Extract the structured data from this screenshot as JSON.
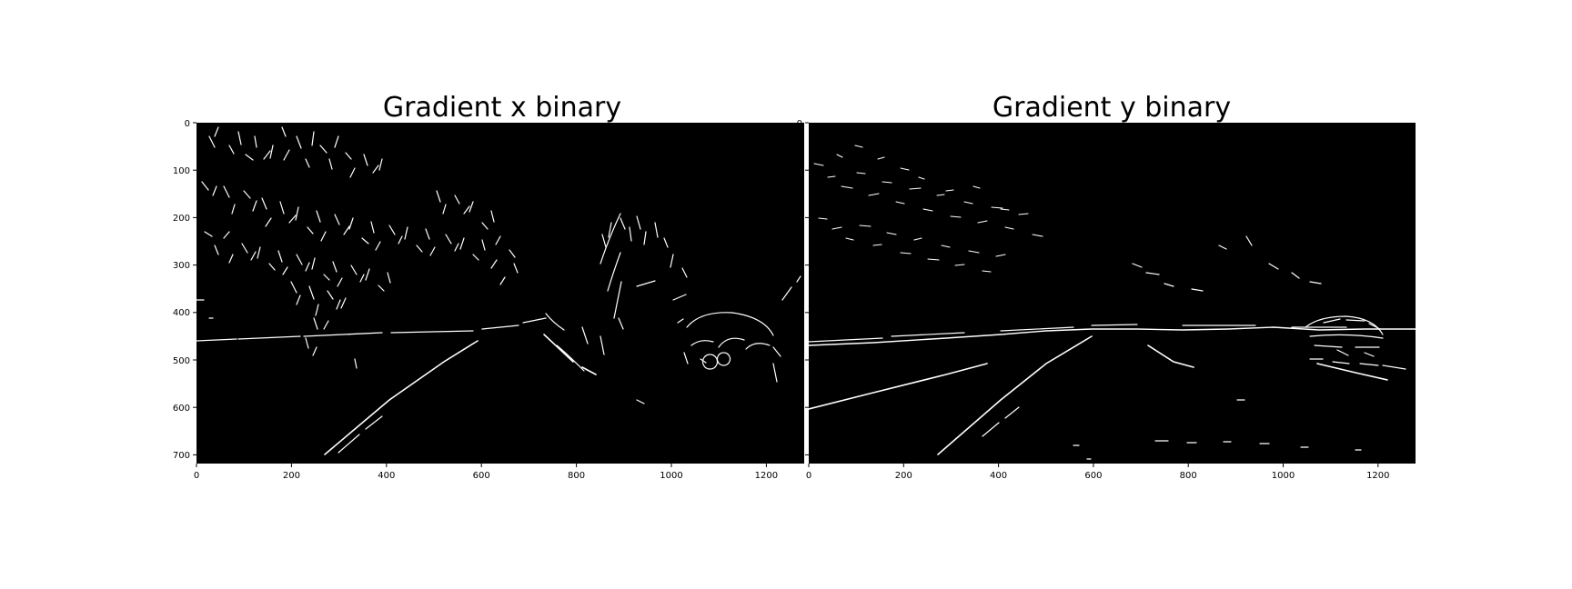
{
  "figure": {
    "background": "#ffffff",
    "panels": [
      {
        "title": "Gradient x binary",
        "image_content": "binary edge map (white edges on black) from Sobel x-gradient of a road scene",
        "xticks": [
          "0",
          "200",
          "400",
          "600",
          "800",
          "1000",
          "1200"
        ],
        "yticks": [
          "0",
          "100",
          "200",
          "300",
          "400",
          "500",
          "600",
          "700"
        ]
      },
      {
        "title": "Gradient y binary",
        "image_content": "binary edge map (white edges on black) from Sobel y-gradient of a road scene",
        "xticks": [
          "0",
          "200",
          "400",
          "600",
          "800",
          "1000",
          "1200"
        ],
        "yticks": [
          "0",
          "100",
          "200",
          "300",
          "400",
          "500",
          "600",
          "700"
        ]
      }
    ],
    "colors": {
      "image_background": "#000000",
      "edges": "#ffffff"
    }
  }
}
